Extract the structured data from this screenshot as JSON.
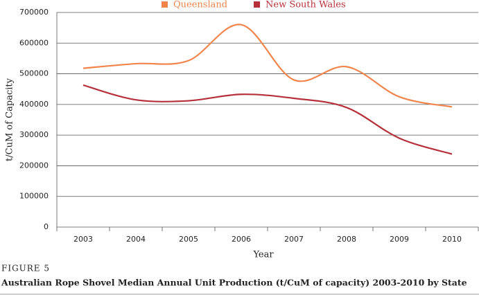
{
  "chart_data": {
    "type": "line",
    "categories": [
      "2003",
      "2004",
      "2005",
      "2006",
      "2007",
      "2008",
      "2009",
      "2010"
    ],
    "series": [
      {
        "name": "Queensland",
        "color": "#f0844a",
        "values": [
          518000,
          533000,
          543000,
          660000,
          480000,
          523000,
          425000,
          392000
        ]
      },
      {
        "name": "New South Wales",
        "color": "#b5303a",
        "values": [
          463000,
          415000,
          412000,
          433000,
          420000,
          390000,
          290000,
          238000
        ]
      }
    ],
    "ylim": [
      0,
      700000
    ],
    "yticks": [
      0,
      100000,
      200000,
      300000,
      400000,
      500000,
      600000,
      700000
    ],
    "grid": true,
    "legend": "top",
    "x_label": "Year",
    "y_label": "t/CuM of Capacity",
    "figure_label": "FIGURE 5",
    "caption": "Australian Rope Shovel Median Annual Unit Production (t/CuM of capacity) 2003-2010 by State"
  }
}
